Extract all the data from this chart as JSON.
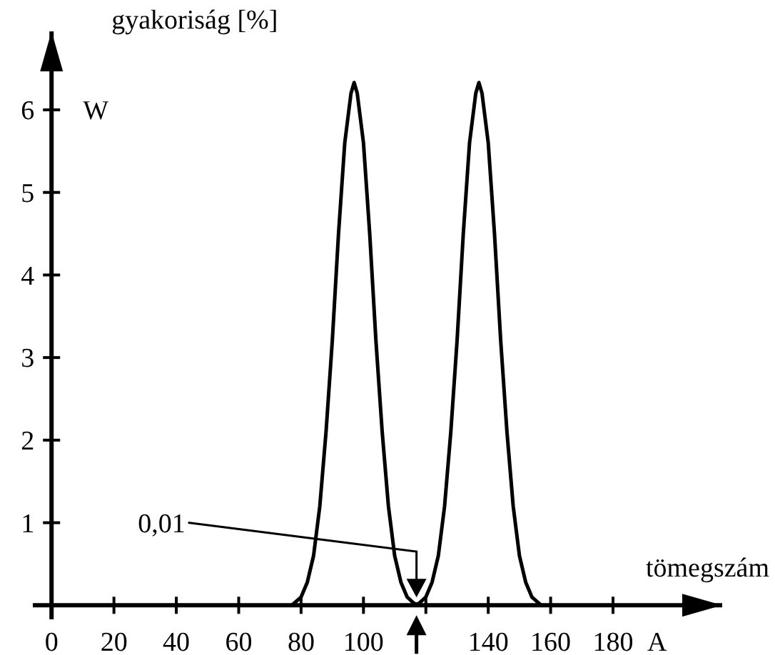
{
  "chart_data": {
    "type": "line",
    "xlabel": "tömegszám",
    "ylabel": "gyakoriság [%]",
    "annotations": [
      "W",
      "A",
      "0,01"
    ],
    "x": [
      77,
      80,
      82,
      84,
      86,
      88,
      90,
      92,
      94,
      96,
      97,
      98,
      100,
      102,
      104,
      106,
      108,
      110,
      112,
      114,
      116,
      117,
      118,
      120,
      122,
      124,
      126,
      128,
      130,
      132,
      134,
      136,
      137,
      138,
      140,
      142,
      144,
      146,
      148,
      150,
      152,
      154,
      157
    ],
    "series": [
      {
        "color": "#000000",
        "values": [
          0,
          0.1,
          0.28,
          0.6,
          1.2,
          2.1,
          3.2,
          4.5,
          5.6,
          6.2,
          6.33,
          6.2,
          5.6,
          4.5,
          3.2,
          2.1,
          1.2,
          0.6,
          0.28,
          0.1,
          0.03,
          0.01,
          0.03,
          0.1,
          0.28,
          0.6,
          1.2,
          2.1,
          3.2,
          4.5,
          5.6,
          6.2,
          6.33,
          6.2,
          5.6,
          4.5,
          3.2,
          2.1,
          1.2,
          0.6,
          0.28,
          0.1,
          0
        ]
      }
    ],
    "xlim": [
      -6,
      215
    ],
    "ylim": [
      -0.17,
      6.95
    ],
    "xticks": [
      0,
      20,
      40,
      60,
      80,
      100,
      {
        "value": 120,
        "label": null
      },
      140,
      160,
      180
    ],
    "yticks": [
      1,
      2,
      3,
      4,
      5,
      6
    ],
    "marker": "none",
    "line_style": "solid"
  }
}
